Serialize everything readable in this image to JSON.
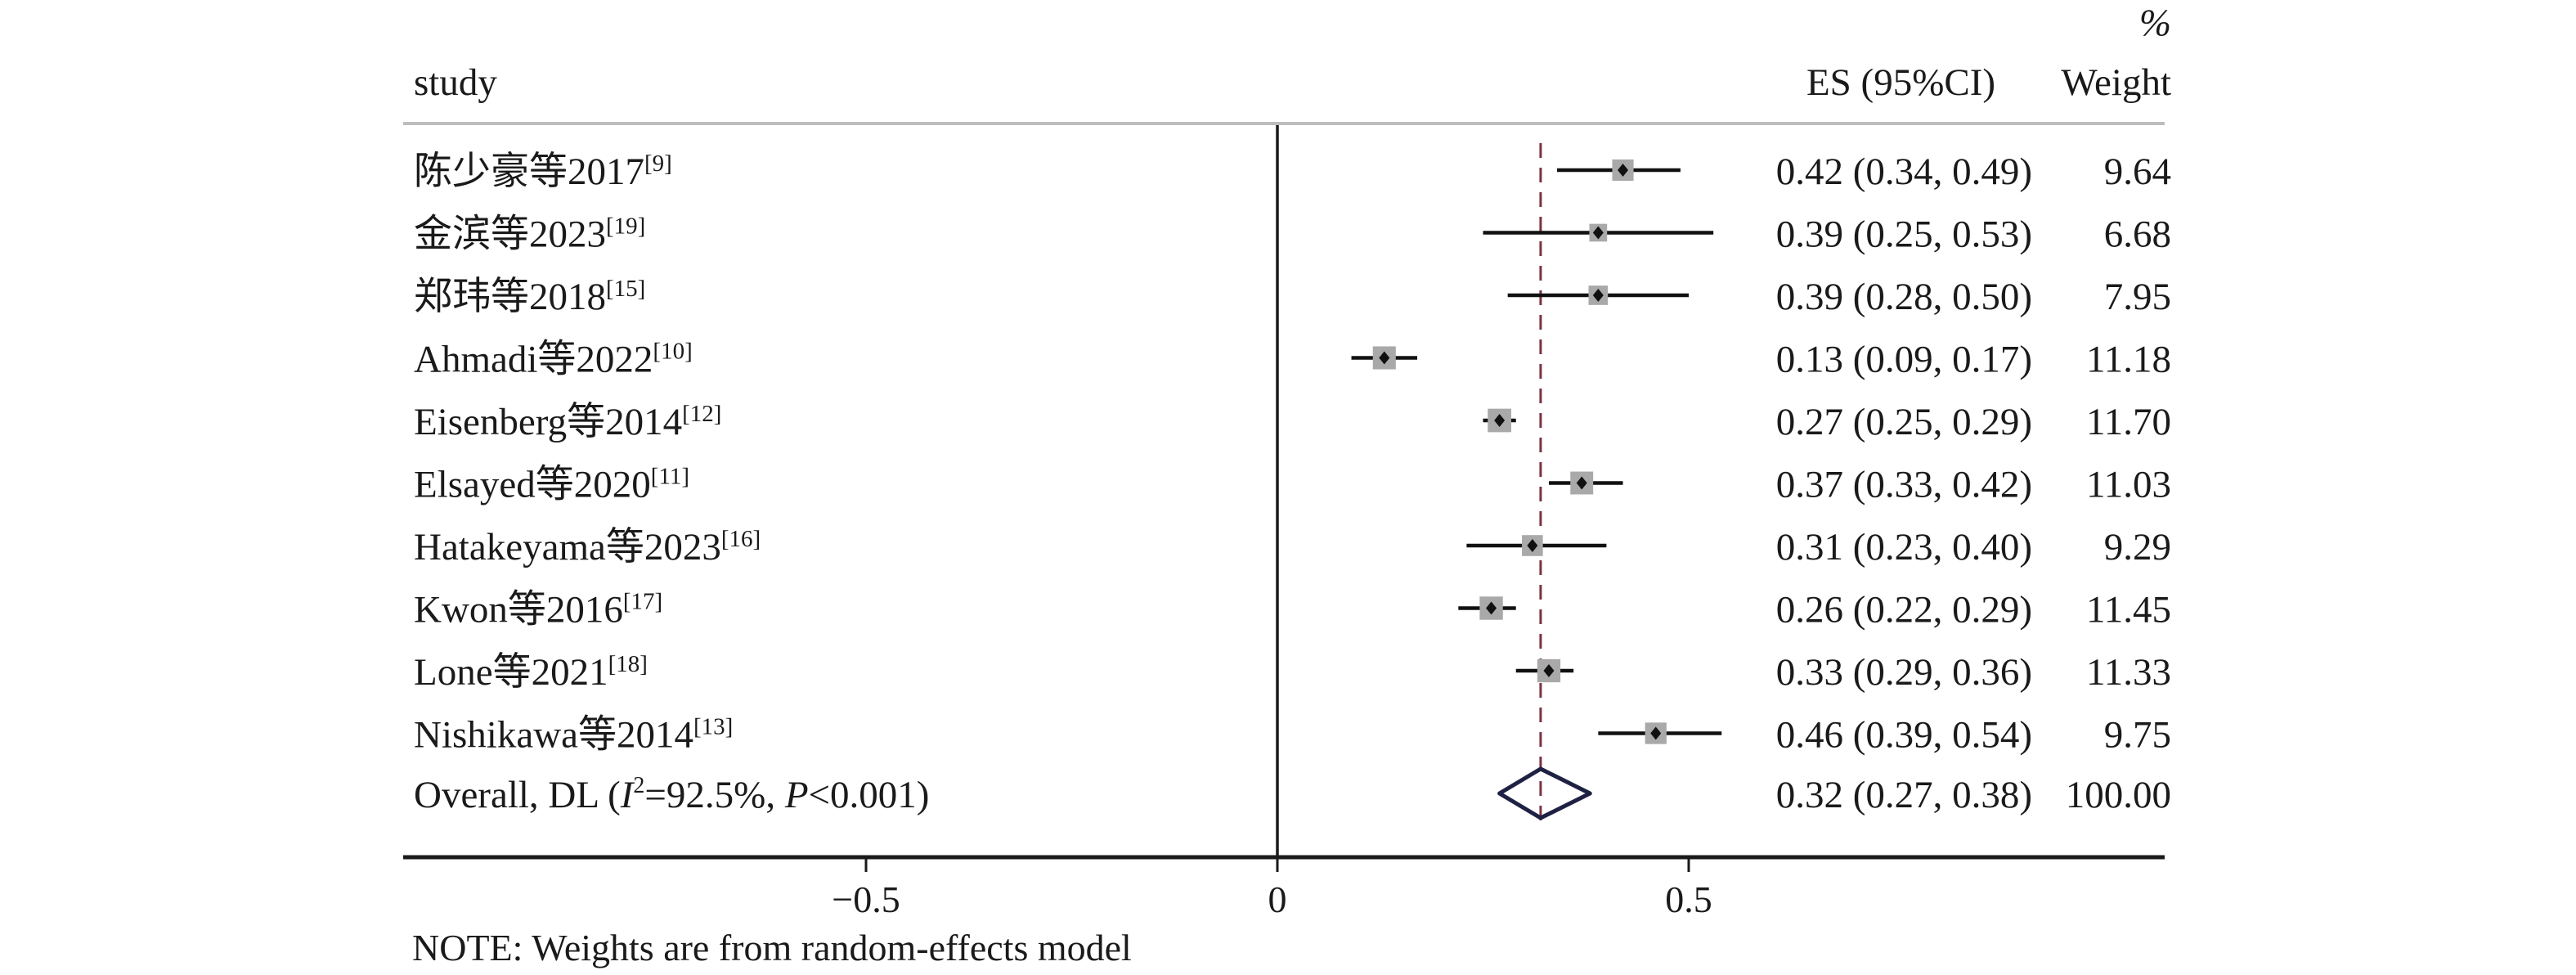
{
  "chart_data": {
    "type": "forest",
    "title": "",
    "header": {
      "study_label": "study",
      "es_label": "ES (95%CI)",
      "weight_label": "Weight",
      "weight_unit": "%"
    },
    "xlabel": "",
    "xlim": [
      -1.06,
      1.08
    ],
    "x_ticks": [
      {
        "value": -0.5,
        "label": "−0.5"
      },
      {
        "value": 0,
        "label": "0"
      },
      {
        "value": 0.5,
        "label": "0.5"
      }
    ],
    "null_line": 0,
    "studies": [
      {
        "name": "陈少豪等2017",
        "ref": "[9]",
        "es": 0.42,
        "lower": 0.34,
        "upper": 0.49,
        "es_text": "0.42 (0.34, 0.49)",
        "weight": 9.64,
        "weight_text": "9.64"
      },
      {
        "name": "金滨等2023",
        "ref": "[19]",
        "es": 0.39,
        "lower": 0.25,
        "upper": 0.53,
        "es_text": "0.39 (0.25, 0.53)",
        "weight": 6.68,
        "weight_text": "6.68"
      },
      {
        "name": "郑玮等2018",
        "ref": "[15]",
        "es": 0.39,
        "lower": 0.28,
        "upper": 0.5,
        "es_text": "0.39 (0.28, 0.50)",
        "weight": 7.95,
        "weight_text": "7.95"
      },
      {
        "name": "Ahmadi等2022",
        "ref": "[10]",
        "es": 0.13,
        "lower": 0.09,
        "upper": 0.17,
        "es_text": "0.13 (0.09, 0.17)",
        "weight": 11.18,
        "weight_text": "11.18"
      },
      {
        "name": "Eisenberg等2014",
        "ref": "[12]",
        "es": 0.27,
        "lower": 0.25,
        "upper": 0.29,
        "es_text": "0.27 (0.25, 0.29)",
        "weight": 11.7,
        "weight_text": "11.70"
      },
      {
        "name": "Elsayed等2020",
        "ref": "[11]",
        "es": 0.37,
        "lower": 0.33,
        "upper": 0.42,
        "es_text": "0.37 (0.33, 0.42)",
        "weight": 11.03,
        "weight_text": "11.03"
      },
      {
        "name": "Hatakeyama等2023",
        "ref": "[16]",
        "es": 0.31,
        "lower": 0.23,
        "upper": 0.4,
        "es_text": "0.31 (0.23, 0.40)",
        "weight": 9.29,
        "weight_text": "9.29"
      },
      {
        "name": "Kwon等2016",
        "ref": "[17]",
        "es": 0.26,
        "lower": 0.22,
        "upper": 0.29,
        "es_text": "0.26 (0.22, 0.29)",
        "weight": 11.45,
        "weight_text": "11.45"
      },
      {
        "name": "Lone等2021",
        "ref": "[18]",
        "es": 0.33,
        "lower": 0.29,
        "upper": 0.36,
        "es_text": "0.33 (0.29, 0.36)",
        "weight": 11.33,
        "weight_text": "11.33"
      },
      {
        "name": "Nishikawa等2014",
        "ref": "[13]",
        "es": 0.46,
        "lower": 0.39,
        "upper": 0.54,
        "es_text": "0.46 (0.39, 0.54)",
        "weight": 9.75,
        "weight_text": "9.75"
      }
    ],
    "overall": {
      "prefix": "Overall, DL (",
      "i2_symbol": "I",
      "i2_sup": "2",
      "i2_value": "=92.5%, ",
      "p_symbol": "P",
      "p_value": "<0.001)",
      "es": 0.32,
      "lower": 0.27,
      "upper": 0.38,
      "es_text": "0.32 (0.27, 0.38)",
      "weight": 100.0,
      "weight_text": "100.00"
    },
    "note": "NOTE: Weights are from random-effects model",
    "colors": {
      "text": "#1a1a1a",
      "ci_line": "#111111",
      "weight_box": "#a9a9a9",
      "point": "#111111",
      "overall_line": "#7a3340",
      "diamond": "#1f2144",
      "header_rule": "#bdbdbd",
      "axis": "#1a1a1a"
    }
  }
}
